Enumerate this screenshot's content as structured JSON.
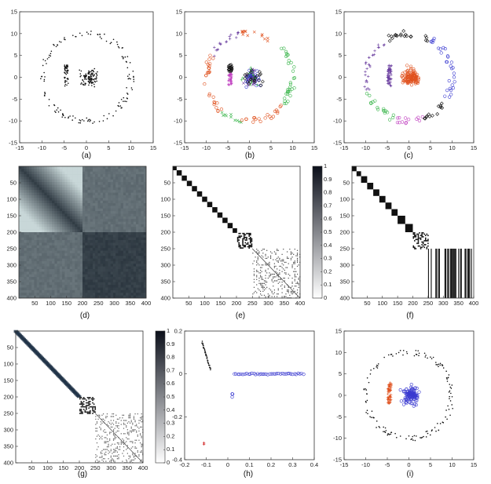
{
  "captions": [
    "(a)",
    "(b)",
    "(c)",
    "(d)",
    "(e)",
    "(f)",
    "(g)",
    "(h)",
    "(i)"
  ],
  "colors": {
    "black": "#111111",
    "orange": "#e0521f",
    "green": "#39b54a",
    "purple": "#6b3fa0",
    "blue": "#3a3ad0",
    "magenta": "#c040c0",
    "red": "#d02020",
    "heat_dark": "#0b0f1a",
    "heat_light": "#ffffff"
  },
  "chart_data": [
    {
      "type": "scatter",
      "panel": "a",
      "xlim": [
        -15,
        15
      ],
      "ylim": [
        -15,
        15
      ],
      "xticks": [
        -15,
        -10,
        -5,
        0,
        5,
        10,
        15
      ],
      "yticks": [
        -15,
        -10,
        -5,
        0,
        5,
        10,
        15
      ],
      "series": [
        {
          "shape": "ring",
          "radius": 10,
          "count": 140,
          "marker": "dot",
          "color": "black"
        },
        {
          "shape": "bar",
          "x": -4.5,
          "y_range": [
            -2,
            3
          ],
          "count": 50,
          "marker": "dot",
          "color": "black"
        },
        {
          "shape": "blob",
          "center": [
            0.5,
            0
          ],
          "spread": 1.2,
          "count": 120,
          "marker": "dot",
          "color": "black"
        }
      ]
    },
    {
      "type": "scatter",
      "panel": "b",
      "xlim": [
        -15,
        15
      ],
      "ylim": [
        -15,
        15
      ],
      "xticks": [
        -15,
        -10,
        -5,
        0,
        5,
        10,
        15
      ],
      "yticks": [
        -15,
        -10,
        -5,
        0,
        5,
        10,
        15
      ],
      "series": [
        {
          "shape": "arc",
          "radius": 10,
          "angles": [
            100,
            150
          ],
          "marker": "plus",
          "color": "purple"
        },
        {
          "shape": "arc",
          "radius": 10,
          "angles": [
            60,
            100
          ],
          "marker": "cross",
          "color": "orange"
        },
        {
          "shape": "arc",
          "radius": 10,
          "angles": [
            -40,
            60
          ],
          "marker": "circle",
          "color": "green"
        },
        {
          "shape": "arc",
          "radius": 10,
          "angles": [
            150,
            230
          ],
          "marker": "circle",
          "color": "orange"
        },
        {
          "shape": "arc",
          "radius": 10,
          "angles": [
            230,
            260
          ],
          "marker": "cross",
          "color": "green"
        },
        {
          "shape": "arc",
          "radius": 10,
          "angles": [
            260,
            320
          ],
          "marker": "circle",
          "color": "orange"
        },
        {
          "shape": "bar",
          "x": -4.5,
          "y_range": [
            1,
            3
          ],
          "marker": "diamond",
          "color": "black"
        },
        {
          "shape": "bar",
          "x": -4.5,
          "y_range": [
            -2,
            1
          ],
          "marker": "plus",
          "color": "magenta"
        },
        {
          "shape": "blob",
          "center": [
            0.5,
            0
          ],
          "spread": 1.3,
          "marker": "mixed",
          "color": "blue"
        }
      ]
    },
    {
      "type": "scatter",
      "panel": "c",
      "xlim": [
        -15,
        15
      ],
      "ylim": [
        -15,
        15
      ],
      "xticks": [
        -15,
        -10,
        -5,
        0,
        5,
        10,
        15
      ],
      "yticks": [
        -15,
        -10,
        -5,
        0,
        5,
        10,
        15
      ],
      "series": [
        {
          "shape": "arc",
          "radius": 10,
          "angles": [
            60,
            120
          ],
          "marker": "diamond",
          "color": "black"
        },
        {
          "shape": "arc",
          "radius": 10,
          "angles": [
            120,
            200
          ],
          "marker": "plus",
          "color": "purple"
        },
        {
          "shape": "arc",
          "radius": 10,
          "angles": [
            200,
            250
          ],
          "marker": "circle",
          "color": "green"
        },
        {
          "shape": "arc",
          "radius": 10,
          "angles": [
            250,
            290
          ],
          "marker": "circle",
          "color": "magenta"
        },
        {
          "shape": "arc",
          "radius": 10,
          "angles": [
            290,
            330
          ],
          "marker": "diamond",
          "color": "black"
        },
        {
          "shape": "arc",
          "radius": 10,
          "angles": [
            -30,
            60
          ],
          "marker": "circle",
          "color": "blue"
        },
        {
          "shape": "bar",
          "x": -4.5,
          "y_range": [
            -2,
            3
          ],
          "marker": "plus",
          "color": "purple"
        },
        {
          "shape": "blob",
          "center": [
            0.5,
            0
          ],
          "spread": 1.3,
          "marker": "circle",
          "color": "orange"
        }
      ]
    },
    {
      "type": "heatmap",
      "panel": "d",
      "style": "affinity-gradient",
      "size": 400,
      "blocks": [
        200,
        200
      ],
      "xticks": [
        50,
        100,
        150,
        200,
        250,
        300,
        350,
        400
      ],
      "yticks": [
        50,
        100,
        150,
        200,
        250,
        300,
        350,
        400
      ]
    },
    {
      "type": "heatmap",
      "panel": "e",
      "style": "binary-blocks",
      "size": 400,
      "blocks": [
        [
          0,
          12
        ],
        [
          12,
          28
        ],
        [
          28,
          44
        ],
        [
          44,
          60
        ],
        [
          60,
          76
        ],
        [
          76,
          92
        ],
        [
          92,
          108
        ],
        [
          108,
          124
        ],
        [
          124,
          140
        ],
        [
          140,
          156
        ],
        [
          156,
          172
        ],
        [
          172,
          188
        ],
        [
          188,
          202
        ],
        [
          202,
          250
        ]
      ],
      "noise_block": [
        250,
        400
      ],
      "xticks": [
        50,
        100,
        150,
        200,
        250,
        300,
        350,
        400
      ],
      "yticks": [
        50,
        100,
        150,
        200,
        250,
        300,
        350,
        400
      ],
      "colorbar": {
        "range": [
          0,
          1
        ],
        "ticks": [
          0,
          0.1,
          0.2,
          0.3,
          0.4,
          0.5,
          0.6,
          0.7,
          0.8,
          0.9,
          1
        ]
      }
    },
    {
      "type": "heatmap",
      "panel": "f",
      "style": "binary-blocks",
      "size": 400,
      "blocks": [
        [
          0,
          15
        ],
        [
          15,
          30
        ],
        [
          30,
          50
        ],
        [
          50,
          70
        ],
        [
          70,
          90
        ],
        [
          90,
          110
        ],
        [
          110,
          130
        ],
        [
          130,
          150
        ],
        [
          150,
          175
        ],
        [
          175,
          200
        ],
        [
          200,
          250
        ]
      ],
      "noise_block": [
        250,
        400
      ],
      "noise_style": "stripes",
      "xticks": [
        50,
        100,
        150,
        200,
        250,
        300,
        350,
        400
      ],
      "yticks": [
        50,
        100,
        150,
        200,
        250,
        300,
        350,
        400
      ]
    },
    {
      "type": "heatmap",
      "panel": "g",
      "style": "soft-diagonal",
      "size": 400,
      "blocks": [
        200,
        50,
        150
      ],
      "xticks": [
        50,
        100,
        150,
        200,
        250,
        300,
        350,
        400
      ],
      "yticks": [
        50,
        100,
        150,
        200,
        250,
        300,
        350,
        400
      ],
      "colorbar": {
        "range": [
          0,
          1
        ],
        "ticks": [
          0,
          0.1,
          0.2,
          0.3,
          0.4,
          0.5,
          0.6,
          0.7,
          0.8,
          0.9,
          1
        ]
      }
    },
    {
      "type": "scatter",
      "panel": "h",
      "xlim": [
        -0.2,
        0.4
      ],
      "ylim": [
        -0.4,
        0.2
      ],
      "xticks": [
        -0.2,
        -0.1,
        0,
        0.1,
        0.2,
        0.3,
        0.4
      ],
      "yticks": [
        -0.4,
        -0.2,
        0,
        0.2
      ],
      "series": [
        {
          "shape": "line",
          "from": [
            -0.12,
            0.15
          ],
          "to": [
            -0.08,
            0.02
          ],
          "marker": "dot",
          "color": "black"
        },
        {
          "shape": "line",
          "from": [
            0.03,
            0.0
          ],
          "to": [
            0.35,
            0.0
          ],
          "marker": "circle",
          "color": "blue"
        },
        {
          "shape": "point",
          "at": [
            -0.11,
            -0.32
          ],
          "marker": "plus",
          "color": "red"
        },
        {
          "shape": "point",
          "at": [
            0.02,
            -0.1
          ],
          "marker": "circle",
          "color": "blue"
        }
      ]
    },
    {
      "type": "scatter",
      "panel": "i",
      "xlim": [
        -15,
        15
      ],
      "ylim": [
        -15,
        15
      ],
      "xticks": [
        -15,
        -10,
        -5,
        0,
        5,
        10,
        15
      ],
      "yticks": [
        -15,
        -10,
        -5,
        0,
        5,
        10,
        15
      ],
      "series": [
        {
          "shape": "ring",
          "radius": 10,
          "count": 140,
          "marker": "dot",
          "color": "black"
        },
        {
          "shape": "bar",
          "x": -4.5,
          "y_range": [
            -2,
            3
          ],
          "marker": "plus",
          "color": "orange"
        },
        {
          "shape": "blob",
          "center": [
            0.5,
            0
          ],
          "spread": 1.3,
          "marker": "circle",
          "color": "blue"
        }
      ]
    }
  ]
}
